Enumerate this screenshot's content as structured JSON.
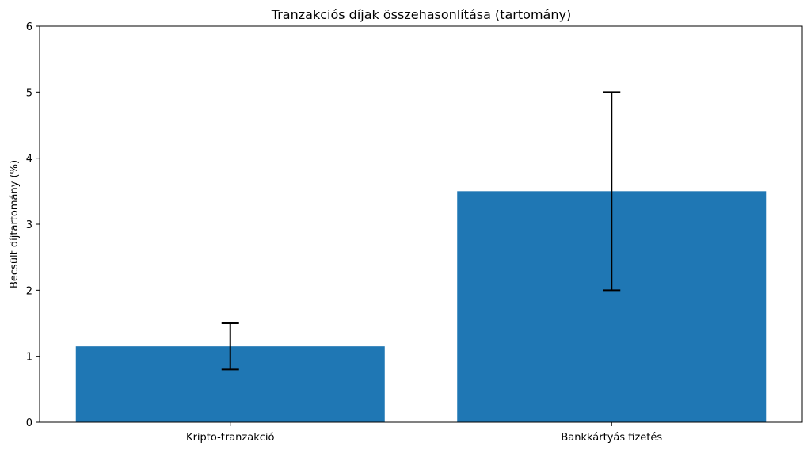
{
  "chart_data": {
    "type": "bar",
    "title": "Tranzakciós díjak összehasonlítása (tartomány)",
    "xlabel": "",
    "ylabel": "Becsült díjtartomány (%)",
    "categories": [
      "Kripto-tranzakció",
      "Bankkártyás fizetés"
    ],
    "values": [
      1.15,
      3.5
    ],
    "error_low": [
      0.8,
      2.0
    ],
    "error_high": [
      1.5,
      5.0
    ],
    "ylim": [
      0,
      6
    ],
    "yticks": [
      "0",
      "1",
      "2",
      "3",
      "4",
      "5",
      "6"
    ],
    "grid": false,
    "colors": {
      "bar": "#1f77b4",
      "error": "#000000",
      "axis": "#000000"
    }
  }
}
